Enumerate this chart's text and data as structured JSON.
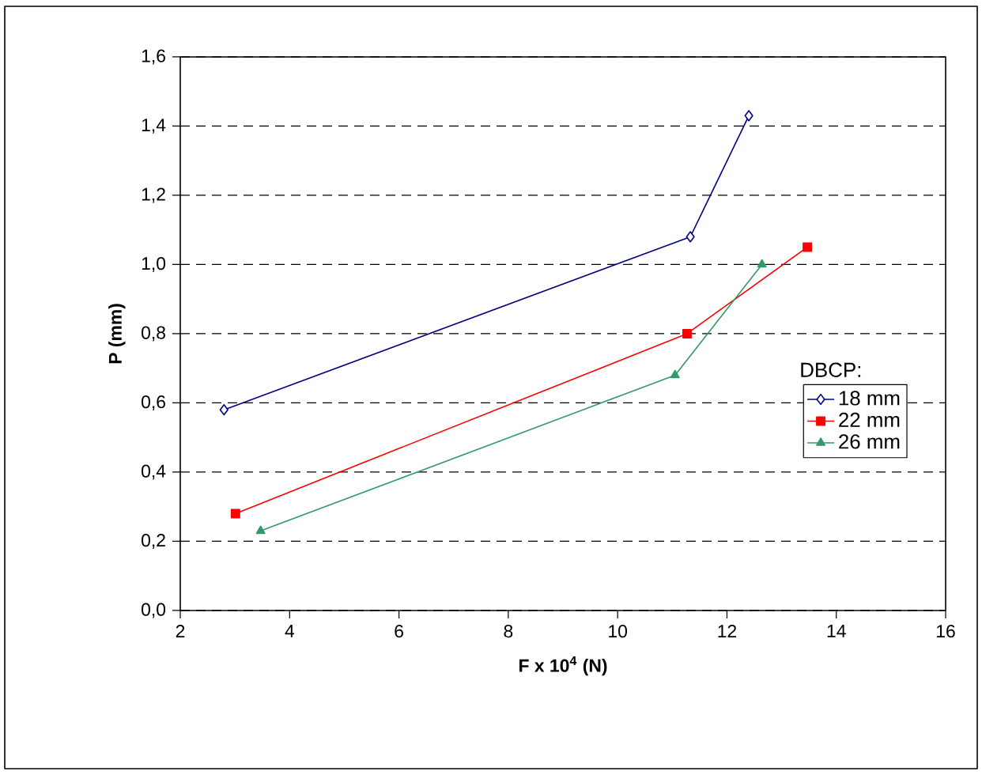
{
  "chart_data": {
    "type": "line",
    "xlabel": "F x 10$^{4}$ (N)",
    "ylabel": "P (mm)",
    "legend_title": "DBCP:",
    "xlim": [
      2,
      16
    ],
    "xticks": [
      2,
      4,
      6,
      8,
      10,
      12,
      14,
      16
    ],
    "ylim": [
      0,
      1.6
    ],
    "yticks": [
      {
        "value": 0,
        "label": "0,0"
      },
      {
        "value": 0.2,
        "label": "0,2"
      },
      {
        "value": 0.4,
        "label": "0,4"
      },
      {
        "value": 0.6,
        "label": "0,6"
      },
      {
        "value": 0.8,
        "label": "0,8"
      },
      {
        "value": 1.0,
        "label": "1,0"
      },
      {
        "value": 1.2,
        "label": "1,2"
      },
      {
        "value": 1.4,
        "label": "1,4"
      },
      {
        "value": 1.6,
        "label": "1,6"
      }
    ],
    "grid": "y",
    "legend": "right",
    "series": [
      {
        "name": "18 mm",
        "color": "#000080",
        "marker": "diamond",
        "x": [
          2.8,
          11.33,
          12.4
        ],
        "values": [
          0.58,
          1.08,
          1.43
        ]
      },
      {
        "name": "22 mm",
        "color": "#ff0000",
        "marker": "square",
        "x": [
          3.01,
          11.27,
          13.47
        ],
        "values": [
          0.28,
          0.8,
          1.05
        ]
      },
      {
        "name": "26 mm",
        "color": "#339966",
        "marker": "triangle",
        "x": [
          3.47,
          11.05,
          12.64
        ],
        "values": [
          0.23,
          0.68,
          1.0
        ]
      }
    ]
  }
}
